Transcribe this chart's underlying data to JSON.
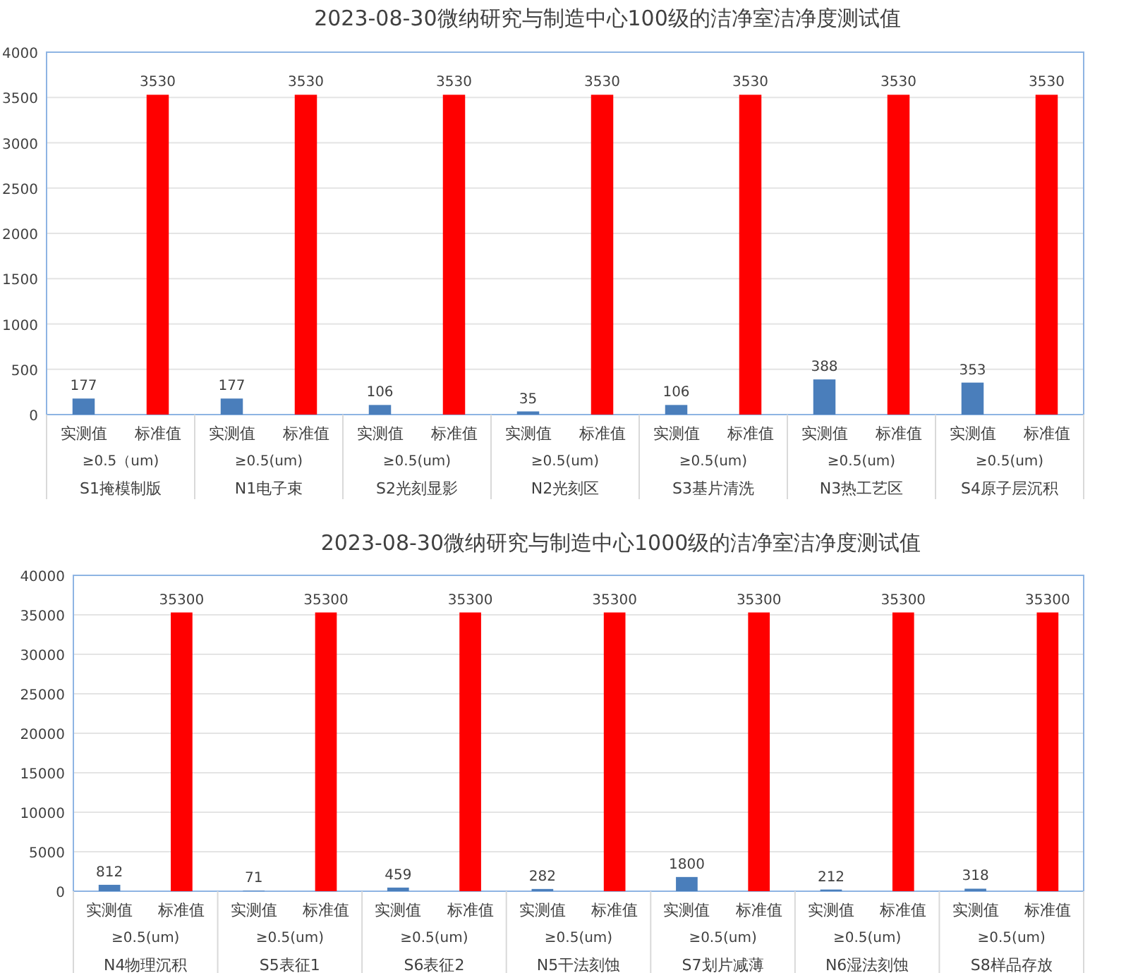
{
  "chart_data": [
    {
      "type": "bar",
      "title": "2023-08-30微纳研究与制造中心100级的洁净室洁净度测试值",
      "categories": [
        "实测值",
        "标准值",
        "实测值",
        "标准值",
        "实测值",
        "标准值",
        "实测值",
        "标准值",
        "实测值",
        "标准值",
        "实测值",
        "标准值",
        "实测值",
        "标准值"
      ],
      "values": [
        177,
        3530,
        177,
        3530,
        106,
        3530,
        35,
        3530,
        106,
        3530,
        388,
        3530,
        353,
        3530
      ],
      "colors": [
        "#4a7ebb",
        "#ff0000",
        "#4a7ebb",
        "#ff0000",
        "#4a7ebb",
        "#ff0000",
        "#4a7ebb",
        "#ff0000",
        "#4a7ebb",
        "#ff0000",
        "#4a7ebb",
        "#ff0000",
        "#4a7ebb",
        "#ff0000"
      ],
      "annotations": [
        "≥0.5（um)",
        "S1掩模制版",
        "≥0.5(um)",
        "N1电子束",
        "≥0.5(um)",
        "S2光刻显影",
        "≥0.5(um)",
        "N2光刻区",
        "≥0.5(um)",
        "S3基片清洗",
        "≥0.5(um)",
        "N3热工艺区",
        "≥0.5(um)",
        "S4原子层沉积"
      ],
      "ylim": [
        0,
        4000
      ],
      "yticks": [
        0,
        500,
        1000,
        1500,
        2000,
        2500,
        3000,
        3500,
        4000
      ],
      "grid": "y",
      "data_labels": true
    },
    {
      "type": "bar",
      "title": "2023-08-30微纳研究与制造中心1000级的洁净室洁净度测试值",
      "categories": [
        "实测值",
        "标准值",
        "实测值",
        "标准值",
        "实测值",
        "标准值",
        "实测值",
        "标准值",
        "实测值",
        "标准值",
        "实测值",
        "标准值",
        "实测值",
        "标准值"
      ],
      "values": [
        812,
        35300,
        71,
        35300,
        459,
        35300,
        282,
        35300,
        1800,
        35300,
        212,
        35300,
        318,
        35300
      ],
      "colors": [
        "#4a7ebb",
        "#ff0000",
        "#4a7ebb",
        "#ff0000",
        "#4a7ebb",
        "#ff0000",
        "#4a7ebb",
        "#ff0000",
        "#4a7ebb",
        "#ff0000",
        "#4a7ebb",
        "#ff0000",
        "#4a7ebb",
        "#ff0000"
      ],
      "annotations": [
        "≥0.5(um)",
        "N4物理沉积",
        "≥0.5(um)",
        "S5表征1",
        "≥0.5(um)",
        "S6表征2",
        "≥0.5(um)",
        "N5干法刻蚀",
        "≥0.5(um)",
        "S7划片减薄",
        "≥0.5(um)",
        "N6湿法刻蚀",
        "≥0.5(um)",
        "S8样品存放"
      ],
      "ylim": [
        0,
        40000
      ],
      "yticks": [
        0,
        5000,
        10000,
        15000,
        20000,
        25000,
        30000,
        35000,
        40000
      ],
      "grid": "y",
      "data_labels": true
    }
  ]
}
